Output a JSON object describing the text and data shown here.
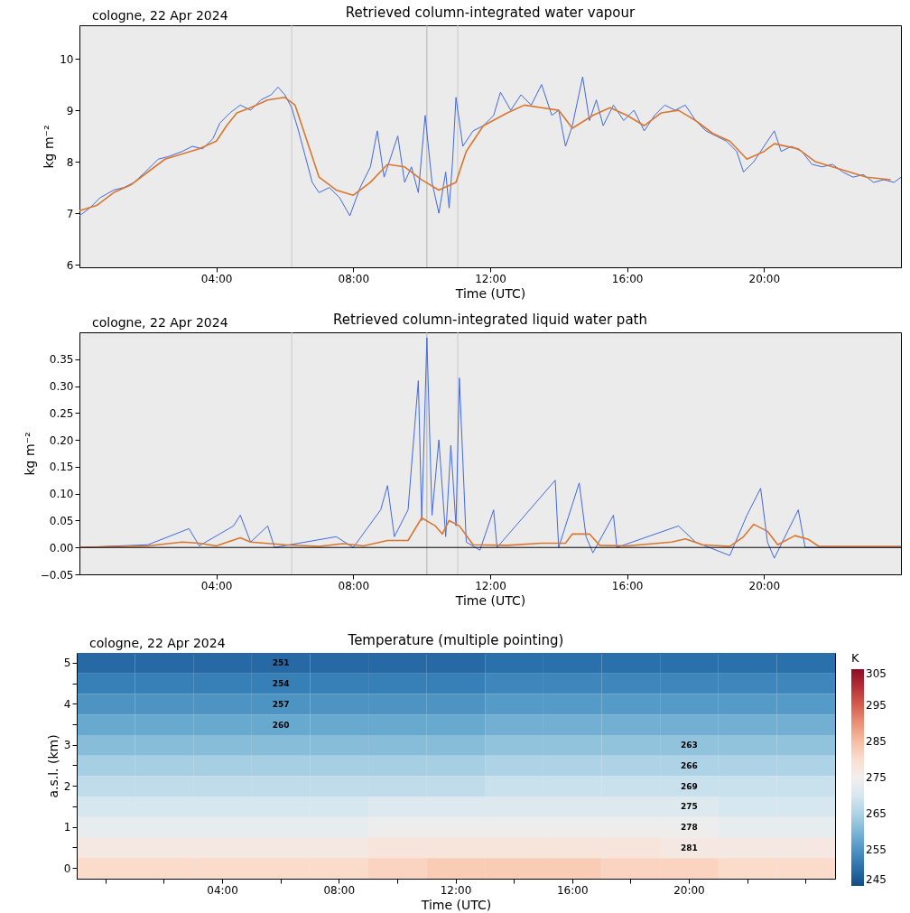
{
  "chart_data": [
    {
      "type": "line",
      "title": "Retrieved column-integrated water vapour",
      "annotations": [
        "cologne, 22 Apr 2024"
      ],
      "xlabel": "Time (UTC)",
      "ylabel": "kg m⁻²",
      "xlim": [
        0,
        24
      ],
      "xticks": [
        {
          "value": 4,
          "label": "04:00"
        },
        {
          "value": 8,
          "label": "08:00"
        },
        {
          "value": 12,
          "label": "12:00"
        },
        {
          "value": 16,
          "label": "16:00"
        },
        {
          "value": 20,
          "label": "20:00"
        }
      ],
      "ylim": [
        5.95,
        10.65
      ],
      "yticks": [
        6,
        7,
        8,
        9,
        10
      ],
      "grid": false,
      "legend": false,
      "ref_lines": [
        {
          "axis": "x",
          "value": 6.2,
          "color": "#c8c8c8"
        },
        {
          "axis": "x",
          "value": 10.15,
          "color": "#b0b0b0"
        },
        {
          "axis": "x",
          "value": 11.05,
          "color": "#c8c8c8"
        }
      ],
      "series": [
        {
          "color": "#4169e1",
          "x": [
            0,
            0.3,
            0.6,
            1,
            1.3,
            1.6,
            2,
            2.3,
            2.6,
            3,
            3.3,
            3.6,
            3.9,
            4.1,
            4.4,
            4.7,
            5,
            5.3,
            5.6,
            5.8,
            6.0,
            6.2,
            6.4,
            6.6,
            6.8,
            7,
            7.3,
            7.6,
            7.9,
            8.2,
            8.5,
            8.7,
            8.9,
            9.1,
            9.3,
            9.5,
            9.7,
            9.9,
            10.1,
            10.3,
            10.5,
            10.7,
            10.8,
            10.9,
            11.0,
            11.2,
            11.5,
            11.8,
            12.1,
            12.3,
            12.6,
            12.9,
            13.2,
            13.5,
            13.8,
            14.0,
            14.2,
            14.4,
            14.7,
            14.9,
            15.1,
            15.3,
            15.6,
            15.9,
            16.2,
            16.5,
            16.8,
            17.1,
            17.4,
            17.7,
            18,
            18.3,
            18.6,
            18.9,
            19.2,
            19.4,
            19.7,
            20,
            20.3,
            20.5,
            20.8,
            21.1,
            21.4,
            21.7,
            22,
            22.3,
            22.6,
            22.9,
            23.2,
            23.5,
            23.8,
            24
          ],
          "values": [
            6.95,
            7.1,
            7.3,
            7.45,
            7.5,
            7.6,
            7.85,
            8.05,
            8.1,
            8.2,
            8.3,
            8.25,
            8.45,
            8.75,
            8.95,
            9.1,
            9.0,
            9.2,
            9.3,
            9.45,
            9.3,
            9.05,
            8.6,
            8.1,
            7.6,
            7.4,
            7.5,
            7.3,
            6.95,
            7.5,
            7.9,
            8.6,
            7.7,
            8.1,
            8.5,
            7.6,
            7.9,
            7.4,
            8.9,
            7.6,
            7.0,
            7.8,
            7.1,
            8.0,
            9.25,
            8.3,
            8.6,
            8.7,
            8.9,
            9.35,
            9.0,
            9.3,
            9.1,
            9.5,
            8.9,
            9.0,
            8.3,
            8.7,
            9.65,
            8.8,
            9.2,
            8.7,
            9.1,
            8.8,
            9.0,
            8.6,
            8.9,
            9.1,
            9.0,
            9.1,
            8.8,
            8.6,
            8.5,
            8.4,
            8.2,
            7.8,
            8.0,
            8.3,
            8.6,
            8.2,
            8.3,
            8.2,
            7.95,
            7.9,
            7.95,
            7.8,
            7.7,
            7.75,
            7.6,
            7.65,
            7.6,
            7.7
          ]
        },
        {
          "color": "#d9772f",
          "x": [
            0,
            0.5,
            1,
            1.5,
            2,
            2.5,
            3,
            3.5,
            4,
            4.3,
            4.6,
            5,
            5.5,
            6,
            6.3,
            6.6,
            7,
            7.5,
            8,
            8.5,
            9,
            9.5,
            10,
            10.5,
            11,
            11.3,
            11.8,
            12.5,
            13,
            13.5,
            14,
            14.4,
            15,
            15.5,
            16,
            16.5,
            17,
            17.5,
            18,
            18.5,
            19,
            19.5,
            20,
            20.3,
            21,
            21.5,
            22,
            22.5,
            23,
            23.7
          ],
          "values": [
            7.05,
            7.15,
            7.4,
            7.55,
            7.8,
            8.05,
            8.15,
            8.25,
            8.4,
            8.7,
            8.95,
            9.05,
            9.2,
            9.25,
            9.1,
            8.5,
            7.7,
            7.45,
            7.35,
            7.6,
            7.95,
            7.9,
            7.65,
            7.45,
            7.6,
            8.2,
            8.7,
            8.95,
            9.1,
            9.05,
            9.0,
            8.65,
            8.9,
            9.05,
            8.9,
            8.7,
            8.95,
            9.0,
            8.8,
            8.55,
            8.4,
            8.05,
            8.2,
            8.35,
            8.25,
            8.0,
            7.9,
            7.8,
            7.7,
            7.65
          ]
        }
      ]
    },
    {
      "type": "line",
      "title": "Retrieved column-integrated liquid water path",
      "annotations": [
        "cologne, 22 Apr 2024"
      ],
      "xlabel": "Time (UTC)",
      "ylabel": "kg m⁻²",
      "xlim": [
        0,
        24
      ],
      "xticks": [
        {
          "value": 4,
          "label": "04:00"
        },
        {
          "value": 8,
          "label": "08:00"
        },
        {
          "value": 12,
          "label": "12:00"
        },
        {
          "value": 16,
          "label": "16:00"
        },
        {
          "value": 20,
          "label": "20:00"
        }
      ],
      "ylim": [
        -0.05,
        0.4
      ],
      "yticks": [
        {
          "value": -0.05,
          "label": "−0.05"
        },
        {
          "value": 0,
          "label": "0.00"
        },
        {
          "value": 0.05,
          "label": "0.05"
        },
        {
          "value": 0.1,
          "label": "0.10"
        },
        {
          "value": 0.15,
          "label": "0.15"
        },
        {
          "value": 0.2,
          "label": "0.20"
        },
        {
          "value": 0.25,
          "label": "0.25"
        },
        {
          "value": 0.3,
          "label": "0.30"
        },
        {
          "value": 0.35,
          "label": "0.35"
        }
      ],
      "grid": false,
      "legend": false,
      "ref_lines": [
        {
          "axis": "x",
          "value": 6.2,
          "color": "#c8c8c8"
        },
        {
          "axis": "x",
          "value": 10.15,
          "color": "#b0b0b0"
        },
        {
          "axis": "x",
          "value": 11.05,
          "color": "#c8c8c8"
        },
        {
          "axis": "y",
          "value": 0,
          "color": "#000000"
        }
      ],
      "series": [
        {
          "color": "#4169e1",
          "x": [
            0,
            2,
            3.2,
            3.5,
            4.5,
            4.7,
            5,
            5.5,
            5.7,
            7.5,
            8,
            8.8,
            9.0,
            9.2,
            9.6,
            9.9,
            10.0,
            10.15,
            10.3,
            10.5,
            10.7,
            10.85,
            11.0,
            11.1,
            11.3,
            11.7,
            12.1,
            12.2,
            13.9,
            14.0,
            14.6,
            14.8,
            15.0,
            15.6,
            15.7,
            17.5,
            18,
            19,
            19.5,
            19.9,
            20.1,
            20.3,
            21.0,
            21.2,
            24
          ],
          "values": [
            0,
            0.005,
            0.035,
            0.003,
            0.04,
            0.06,
            0.01,
            0.04,
            0,
            0.02,
            0,
            0.07,
            0.115,
            0.02,
            0.07,
            0.31,
            0.05,
            0.39,
            0.06,
            0.2,
            0.02,
            0.19,
            0.04,
            0.315,
            0.01,
            -0.005,
            0.07,
            0,
            0.125,
            0,
            0.12,
            0.02,
            -0.01,
            0.06,
            0,
            0.04,
            0.01,
            -0.015,
            0.06,
            0.11,
            0.01,
            -0.02,
            0.07,
            0,
            0
          ]
        },
        {
          "color": "#d9772f",
          "x": [
            0,
            2,
            3,
            3.5,
            4,
            4.7,
            5,
            6,
            7,
            7.7,
            8.3,
            9,
            9.6,
            10,
            10.4,
            10.6,
            10.8,
            11.1,
            11.5,
            12.5,
            13.5,
            14.2,
            14.4,
            14.9,
            15.2,
            16,
            17.3,
            17.7,
            18.2,
            19,
            19.4,
            19.7,
            20.1,
            20.4,
            20.9,
            21.3,
            21.6,
            24
          ],
          "values": [
            0,
            0.003,
            0.01,
            0.008,
            0.003,
            0.018,
            0.01,
            0.005,
            0.002,
            0.007,
            0.003,
            0.013,
            0.013,
            0.055,
            0.04,
            0.025,
            0.05,
            0.04,
            0.005,
            0.004,
            0.008,
            0.008,
            0.025,
            0.025,
            0.004,
            0.003,
            0.01,
            0.016,
            0.005,
            0.002,
            0.02,
            0.043,
            0.03,
            0.005,
            0.022,
            0.015,
            0.002,
            0.002
          ]
        }
      ]
    },
    {
      "type": "heatmap",
      "title": "Temperature (multiple pointing)",
      "annotations": [
        "cologne, 22 Apr 2024",
        "251",
        "254",
        "257",
        "260",
        "263",
        "266",
        "269",
        "275",
        "278",
        "281"
      ],
      "xlabel": "Time (UTC)",
      "ylabel": "a.s.l. (km)",
      "clabel": "K",
      "clim": [
        245,
        305
      ],
      "cticks": [
        245,
        255,
        265,
        275,
        285,
        295,
        305
      ],
      "categories": [
        null,
        null,
        "04:00",
        null,
        "08:00",
        null,
        "12:00",
        null,
        "16:00",
        null,
        "20:00",
        null,
        null
      ],
      "y_categories": [
        "5",
        null,
        "4",
        null,
        "3",
        null,
        "2",
        null,
        "1",
        null,
        "0"
      ],
      "cells": [
        [
          249,
          249,
          249,
          249,
          249,
          249,
          249,
          250,
          250,
          250,
          250,
          250,
          250
        ],
        [
          252,
          252,
          252,
          252,
          252,
          252,
          252,
          253,
          253,
          253,
          253,
          253,
          253
        ],
        [
          255,
          255,
          255,
          255,
          255,
          255,
          255,
          256,
          256,
          256,
          256,
          256,
          256
        ],
        [
          258,
          258,
          258,
          258,
          258,
          258,
          258,
          259,
          259,
          259,
          259,
          259,
          259
        ],
        [
          261,
          261,
          261,
          261,
          261,
          261,
          261,
          262,
          262,
          262,
          262,
          262,
          262
        ],
        [
          264,
          264,
          264,
          264,
          264,
          264,
          264,
          265,
          265,
          265,
          265,
          265,
          265
        ],
        [
          267,
          267,
          267,
          267,
          267,
          267,
          267,
          268,
          268,
          268,
          268,
          268,
          268
        ],
        [
          270,
          270,
          270,
          270,
          270,
          271,
          271,
          271,
          271,
          271,
          271,
          270,
          270
        ],
        [
          273,
          273,
          273,
          273,
          273,
          274,
          274,
          274,
          274,
          274,
          274,
          273,
          273
        ],
        [
          277,
          277,
          277,
          277,
          277,
          278,
          278,
          278,
          278,
          278,
          277,
          277,
          277
        ],
        [
          281,
          281,
          281,
          281,
          281,
          282,
          283,
          283,
          283,
          282,
          282,
          281,
          281
        ]
      ]
    }
  ]
}
